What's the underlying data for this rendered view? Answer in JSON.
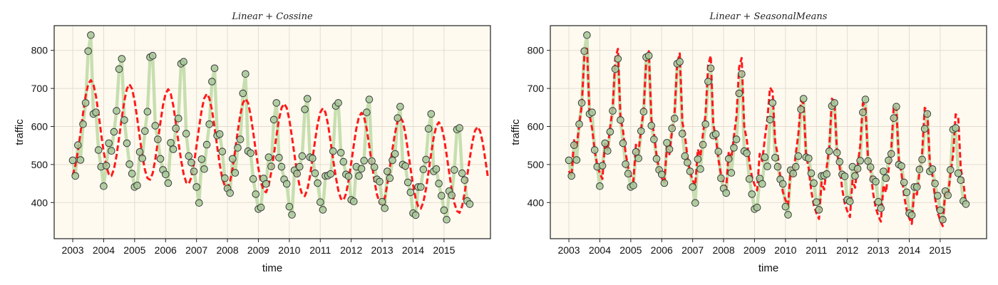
{
  "figure": {
    "background": "#ffffff",
    "plot_background": "#fffaf0",
    "observed_line_color": "#a9d18e",
    "marker_fill": "#a9c99b",
    "marker_edge": "#3a3a3a",
    "fit_color": "#ff1a1a"
  },
  "chart_data": [
    {
      "type": "line",
      "title": "Linear + Cossine",
      "xlabel": "time",
      "ylabel": "traffic",
      "xlim": [
        2002.4,
        2016.5
      ],
      "ylim": [
        305,
        865
      ],
      "xticks": [
        2003,
        2004,
        2005,
        2006,
        2007,
        2008,
        2009,
        2010,
        2011,
        2012,
        2013,
        2014,
        2015
      ],
      "xtick_labels": [
        "2003",
        "2004",
        "2005",
        "2006",
        "2007",
        "2008",
        "2009",
        "2010",
        "2011",
        "2012",
        "2013",
        "2014",
        "2015"
      ],
      "yticks": [
        400,
        500,
        600,
        700,
        800
      ],
      "ytick_labels": [
        "400",
        "500",
        "600",
        "700",
        "800"
      ],
      "grid": true,
      "start": 2003.0,
      "step": 0.08333,
      "series": [
        {
          "role": "observed",
          "style": "thick light line with circle markers",
          "values": [
            511,
            470,
            551,
            512,
            606,
            662,
            798,
            840,
            633,
            637,
            538,
            494,
            443,
            497,
            556,
            536,
            586,
            641,
            751,
            778,
            617,
            556,
            501,
            476,
            441,
            445,
            533,
            516,
            588,
            639,
            782,
            786,
            602,
            566,
            515,
            486,
            474,
            451,
            557,
            540,
            595,
            621,
            765,
            770,
            581,
            522,
            505,
            482,
            441,
            399,
            514,
            488,
            552,
            606,
            718,
            753,
            576,
            580,
            534,
            464,
            437,
            425,
            515,
            478,
            544,
            566,
            687,
            738,
            535,
            530,
            462,
            422,
            383,
            387,
            463,
            449,
            519,
            495,
            618,
            662,
            518,
            494,
            461,
            449,
            389,
            368,
            485,
            476,
            494,
            522,
            645,
            673,
            519,
            516,
            477,
            451,
            401,
            381,
            470,
            471,
            475,
            535,
            654,
            662,
            531,
            507,
            474,
            469,
            407,
            403,
            494,
            470,
            489,
            510,
            637,
            671,
            509,
            493,
            461,
            455,
            402,
            385,
            482,
            464,
            511,
            528,
            622,
            652,
            500,
            496,
            453,
            427,
            372,
            367,
            441,
            441,
            487,
            513,
            594,
            633,
            482,
            488,
            450,
            418,
            380,
            355,
            430,
            419,
            486,
            592,
            596,
            477,
            459,
            404,
            396
          ]
        },
        {
          "role": "fit",
          "style": "dashed",
          "values": [
            472,
            497,
            535,
            583,
            634,
            680,
            711,
            722,
            711,
            680,
            634,
            582,
            534,
            496,
            474,
            470,
            488,
            524,
            571,
            622,
            667,
            699,
            711,
            699,
            668,
            621,
            571,
            523,
            486,
            464,
            460,
            477,
            513,
            560,
            610,
            655,
            686,
            698,
            686,
            655,
            609,
            559,
            512,
            475,
            453,
            449,
            466,
            502,
            549,
            598,
            643,
            674,
            686,
            674,
            643,
            597,
            548,
            501,
            464,
            443,
            438,
            455,
            491,
            537,
            587,
            631,
            662,
            673,
            662,
            630,
            585,
            536,
            490,
            453,
            432,
            427,
            445,
            480,
            526,
            575,
            619,
            649,
            660,
            649,
            618,
            573,
            525,
            479,
            443,
            421,
            417,
            434,
            469,
            515,
            563,
            607,
            637,
            648,
            637,
            606,
            561,
            513,
            468,
            432,
            410,
            406,
            423,
            458,
            504,
            551,
            595,
            625,
            636,
            625,
            594,
            549,
            502,
            457,
            421,
            400,
            395,
            412,
            447,
            492,
            540,
            583,
            613,
            624,
            613,
            582,
            538,
            490,
            446,
            410,
            389,
            384,
            401,
            436,
            481,
            528,
            571,
            601,
            611,
            600,
            570,
            526,
            479,
            434,
            399,
            378,
            373,
            390,
            425,
            470,
            516,
            559,
            589,
            599,
            588,
            558,
            514,
            467
          ]
        }
      ]
    },
    {
      "type": "line",
      "title": "Linear + SeasonalMeans",
      "xlabel": "time",
      "ylabel": "traffic",
      "xlim": [
        2002.4,
        2016.5
      ],
      "ylim": [
        305,
        865
      ],
      "xticks": [
        2003,
        2004,
        2005,
        2006,
        2007,
        2008,
        2009,
        2010,
        2011,
        2012,
        2013,
        2014,
        2015
      ],
      "xtick_labels": [
        "2003",
        "2004",
        "2005",
        "2006",
        "2007",
        "2008",
        "2009",
        "2010",
        "2011",
        "2012",
        "2013",
        "2014",
        "2015"
      ],
      "yticks": [
        400,
        500,
        600,
        700,
        800
      ],
      "ytick_labels": [
        "400",
        "500",
        "600",
        "700",
        "800"
      ],
      "grid": true,
      "start": 2003.0,
      "step": 0.08333,
      "series": [
        {
          "role": "observed",
          "style": "thick light line with circle markers",
          "values": [
            511,
            470,
            551,
            512,
            606,
            662,
            798,
            840,
            633,
            637,
            538,
            494,
            443,
            497,
            556,
            536,
            586,
            641,
            751,
            778,
            617,
            556,
            501,
            476,
            441,
            445,
            533,
            516,
            588,
            639,
            782,
            786,
            602,
            566,
            515,
            486,
            474,
            451,
            557,
            540,
            595,
            621,
            765,
            770,
            581,
            522,
            505,
            482,
            441,
            399,
            514,
            488,
            552,
            606,
            718,
            753,
            576,
            580,
            534,
            464,
            437,
            425,
            515,
            478,
            544,
            566,
            687,
            738,
            535,
            530,
            462,
            422,
            383,
            387,
            463,
            449,
            519,
            495,
            618,
            662,
            518,
            494,
            461,
            449,
            389,
            368,
            485,
            476,
            494,
            522,
            645,
            673,
            519,
            516,
            477,
            451,
            401,
            381,
            470,
            471,
            475,
            535,
            654,
            662,
            531,
            507,
            474,
            469,
            407,
            403,
            494,
            470,
            489,
            510,
            637,
            671,
            509,
            493,
            461,
            455,
            402,
            385,
            482,
            464,
            511,
            528,
            622,
            652,
            500,
            496,
            453,
            427,
            372,
            367,
            441,
            441,
            487,
            513,
            594,
            633,
            482,
            488,
            450,
            418,
            380,
            355,
            430,
            419,
            486,
            592,
            596,
            477,
            459,
            404,
            396
          ]
        },
        {
          "role": "fit",
          "style": "dashed",
          "values": [
            483,
            468,
            564,
            545,
            605,
            655,
            785,
            810,
            630,
            595,
            537,
            498,
            477,
            462,
            558,
            539,
            598,
            649,
            779,
            804,
            624,
            589,
            531,
            492,
            471,
            456,
            552,
            533,
            592,
            643,
            773,
            798,
            618,
            583,
            525,
            486,
            465,
            450,
            546,
            527,
            586,
            637,
            767,
            792,
            612,
            577,
            519,
            480,
            459,
            444,
            540,
            521,
            580,
            631,
            761,
            786,
            606,
            571,
            513,
            474,
            453,
            438,
            534,
            515,
            574,
            625,
            755,
            780,
            600,
            565,
            507,
            468,
            447,
            432,
            528,
            509,
            568,
            619,
            702,
            692,
            560,
            525,
            467,
            428,
            407,
            392,
            488,
            469,
            528,
            579,
            668,
            660,
            525,
            490,
            432,
            393,
            372,
            357,
            453,
            434,
            493,
            544,
            673,
            665,
            530,
            495,
            437,
            398,
            377,
            362,
            458,
            439,
            498,
            549,
            661,
            653,
            518,
            483,
            425,
            386,
            365,
            350,
            446,
            427,
            486,
            537,
            655,
            647,
            512,
            477,
            419,
            380,
            359,
            344,
            440,
            421,
            480,
            531,
            649,
            641,
            506,
            471,
            413,
            374,
            353,
            338,
            434,
            415,
            474,
            525,
            632,
            624,
            489,
            454,
            396
          ]
        }
      ]
    }
  ]
}
